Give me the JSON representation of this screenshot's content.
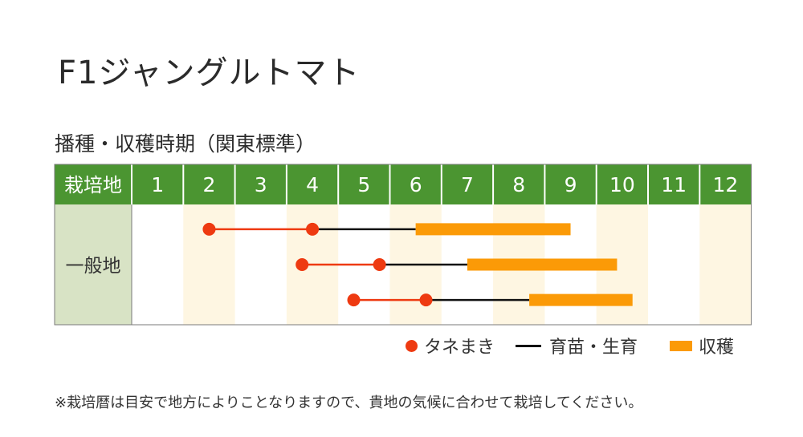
{
  "title": "F1ジャングルトマト",
  "subtitle": "播種・収穫時期（関東標準）",
  "colors": {
    "header_bg": "#4b9531",
    "header_text": "#ffffff",
    "row_label_bg": "#d8e3c5",
    "alt_month_bg": "#fef6e2",
    "sowing": "#ee3a11",
    "growing": "#111111",
    "harvest": "#fb9a07"
  },
  "legend": {
    "sowing_label": "タネまき",
    "growing_label": "育苗・生育",
    "harvest_label": "収穫"
  },
  "note": "※栽培暦は目安で地方によりことなりますので、貴地の気候に合わせて栽培してください。",
  "chart_data": {
    "type": "gantt",
    "header_label": "栽培地",
    "months": [
      "1",
      "2",
      "3",
      "4",
      "5",
      "6",
      "7",
      "8",
      "9",
      "10",
      "11",
      "12"
    ],
    "shaded_months": [
      2,
      4,
      6,
      8,
      10,
      12
    ],
    "regions": [
      {
        "name": "一般地",
        "schedules": [
          {
            "sow_start": 2.5,
            "sow_end": 4.5,
            "grow_end": 6.5,
            "harvest_end": 9.5
          },
          {
            "sow_start": 4.3,
            "sow_end": 5.8,
            "grow_end": 7.5,
            "harvest_end": 10.4
          },
          {
            "sow_start": 5.3,
            "sow_end": 6.7,
            "grow_end": 8.7,
            "harvest_end": 10.7
          }
        ]
      }
    ]
  }
}
